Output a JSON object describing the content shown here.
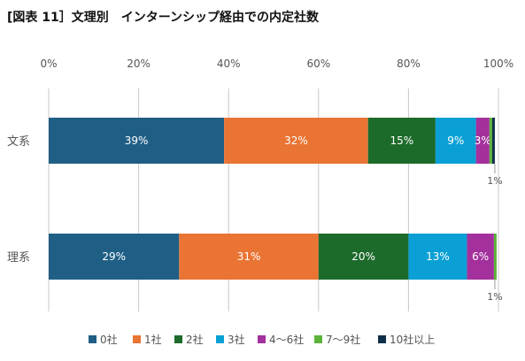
{
  "chart_data": {
    "type": "bar",
    "orientation": "horizontal",
    "stacked": true,
    "title": "[図表 11］文理別　インターンシップ経由での内定社数",
    "xlim": [
      0,
      100
    ],
    "xticks": [
      "0%",
      "20%",
      "40%",
      "60%",
      "80%",
      "100%"
    ],
    "grid": true,
    "legend_position": "bottom",
    "categories": [
      "文系",
      "理系"
    ],
    "series": [
      {
        "name": "0社",
        "color": "#1f5f86",
        "values": [
          39,
          29
        ],
        "labels": [
          "39%",
          "29%"
        ]
      },
      {
        "name": "1社",
        "color": "#ea7433",
        "values": [
          32,
          31
        ],
        "labels": [
          "32%",
          "31%"
        ]
      },
      {
        "name": "2社",
        "color": "#1d6b2b",
        "values": [
          15,
          20
        ],
        "labels": [
          "15%",
          "20%"
        ]
      },
      {
        "name": "3社",
        "color": "#0aa0d6",
        "values": [
          9,
          13
        ],
        "labels": [
          "9%",
          "13%"
        ]
      },
      {
        "name": "4〜6社",
        "color": "#a3309c",
        "values": [
          3,
          6
        ],
        "labels": [
          "3%",
          "6%"
        ]
      },
      {
        "name": "7〜9社",
        "color": "#5cb33a",
        "values": [
          0.6,
          0.6
        ],
        "labels": [
          "",
          ""
        ]
      },
      {
        "name": "10社以上",
        "color": "#0f2f48",
        "values": [
          0.6,
          0
        ],
        "labels": [
          "",
          ""
        ]
      }
    ],
    "outside_labels": [
      "1%",
      "1%"
    ]
  }
}
